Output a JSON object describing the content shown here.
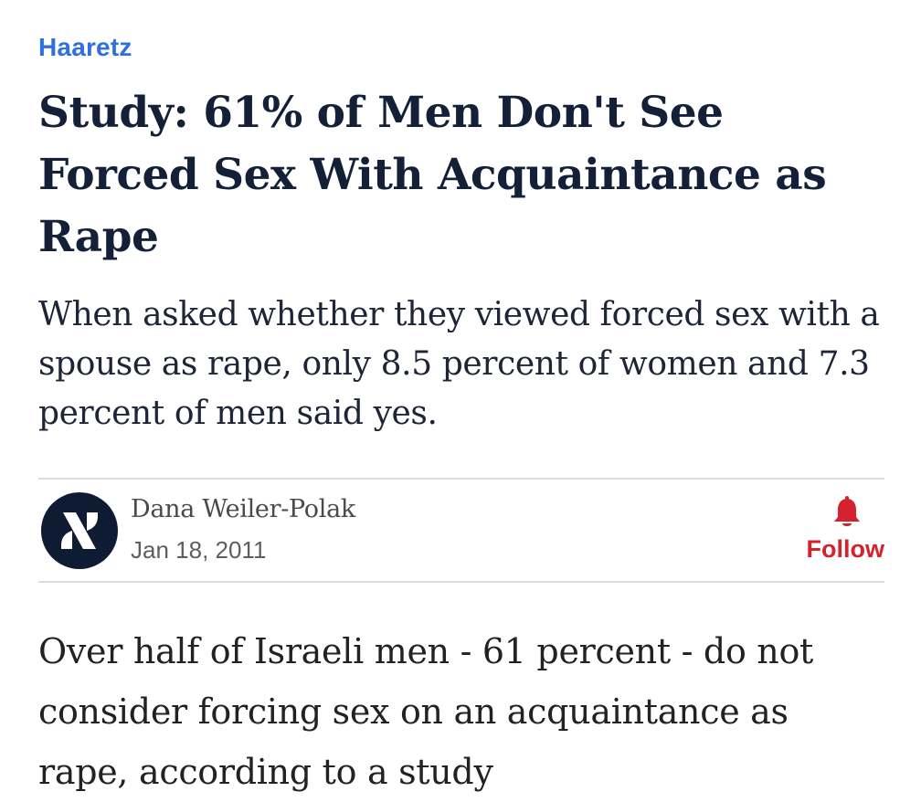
{
  "publisher": {
    "name": "Haaretz"
  },
  "article": {
    "headline": "Study: 61% of Men Don't See Forced Sex With Acquaintance as Rape",
    "subtitle": "When asked whether they viewed forced sex with a spouse as rape, only 8.5 percent of women and 7.3 percent of men said yes.",
    "body_first_paragraph": "Over half of Israeli men - 61 percent - do not consider forcing sex on an acquaintance as rape, according to a study"
  },
  "author": {
    "name": "Dana Weiler-Polak",
    "date": "Jan 18, 2011",
    "avatar_icon": "haaretz-logo-icon"
  },
  "follow": {
    "label": "Follow",
    "icon": "bell-icon"
  },
  "colors": {
    "publisher": "#2f6fe0",
    "headline": "#142038",
    "follow": "#d4232f",
    "avatar_bg": "#0f1a33"
  }
}
